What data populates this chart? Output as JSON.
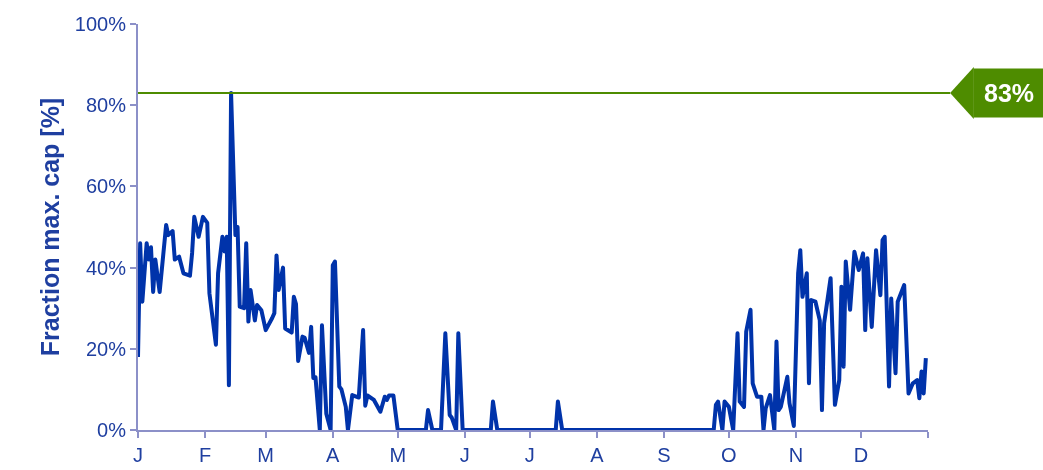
{
  "chart_data": {
    "type": "line",
    "ylabel": "Fraction max. cap [%]",
    "color": "#0033aa",
    "categories": [
      "J",
      null,
      null,
      null,
      null,
      null,
      null,
      null,
      null,
      null,
      null,
      null,
      null,
      null,
      null,
      null,
      null,
      null,
      null,
      null,
      null,
      null,
      null,
      null,
      null,
      null,
      null,
      null,
      null,
      null,
      null,
      "F",
      null,
      null,
      null,
      null,
      null,
      null,
      null,
      null,
      null,
      null,
      null,
      null,
      null,
      null,
      null,
      null,
      null,
      null,
      null,
      null,
      null,
      null,
      null,
      null,
      null,
      null,
      null,
      "M",
      null,
      null,
      null,
      null,
      null,
      null,
      null,
      null,
      null,
      null,
      null,
      null,
      null,
      null,
      null,
      null,
      null,
      null,
      null,
      null,
      null,
      null,
      null,
      null,
      null,
      null,
      null,
      null,
      null,
      null,
      "A",
      null,
      null,
      null,
      null,
      null,
      null,
      null,
      null,
      null,
      null,
      null,
      null,
      null,
      null,
      null,
      null,
      null,
      null,
      null,
      null,
      null,
      null,
      null,
      null,
      null,
      null,
      null,
      null,
      null,
      "M",
      null,
      null,
      null,
      null,
      null,
      null,
      null,
      null,
      null,
      null,
      null,
      null,
      null,
      null,
      null,
      null,
      null,
      null,
      null,
      null,
      null,
      null,
      null,
      null,
      null,
      null,
      null,
      null,
      null,
      null,
      "J",
      null,
      null,
      null,
      null,
      null,
      null,
      null,
      null,
      null,
      null,
      null,
      null,
      null,
      null,
      null,
      null,
      null,
      null,
      null,
      null,
      null,
      null,
      null,
      null,
      null,
      null,
      null,
      null,
      null,
      "J",
      null,
      null,
      null,
      null,
      null,
      null,
      null,
      null,
      null,
      null,
      null,
      null,
      null,
      null,
      null,
      null,
      null,
      null,
      null,
      null,
      null,
      null,
      null,
      null,
      null,
      null,
      null,
      null,
      null,
      null,
      "A",
      null,
      null,
      null,
      null,
      null,
      null,
      null,
      null,
      null,
      null,
      null,
      null,
      null,
      null,
      null,
      null,
      null,
      null,
      null,
      null,
      null,
      null,
      null,
      null,
      null,
      null,
      null,
      null,
      null,
      null,
      "S",
      null,
      null,
      null,
      null,
      null,
      null,
      null,
      null,
      null,
      null,
      null,
      null,
      null,
      null,
      null,
      null,
      null,
      null,
      null,
      null,
      null,
      null,
      null,
      null,
      null,
      null,
      null,
      null,
      null,
      "O",
      null,
      null,
      null,
      null,
      null,
      null,
      null,
      null,
      null,
      null,
      null,
      null,
      null,
      null,
      null,
      null,
      null,
      null,
      null,
      null,
      null,
      null,
      null,
      null,
      null,
      null,
      null,
      null,
      null,
      null,
      "N",
      null,
      null,
      null,
      null,
      null,
      null,
      null,
      null,
      null,
      null,
      null,
      null,
      null,
      null,
      null,
      null,
      null,
      null,
      null,
      null,
      null,
      null,
      null,
      null,
      null,
      null,
      null,
      null,
      null,
      "D",
      null,
      null,
      null,
      null,
      null,
      null,
      null,
      null,
      null,
      null,
      null,
      null,
      null,
      null,
      null,
      null,
      null,
      null,
      null,
      null,
      null,
      null,
      null,
      null,
      null,
      null,
      null,
      null,
      null,
      null
    ],
    "values": [
      18,
      46,
      31.6,
      null,
      46,
      42,
      45,
      34,
      42,
      null,
      34,
      null,
      null,
      50.5,
      48,
      null,
      49,
      42,
      null,
      42.7,
      null,
      38.6,
      null,
      null,
      38,
      43.6,
      52.5,
      null,
      47.6,
      null,
      52.5,
      null,
      51,
      33.7,
      null,
      null,
      21,
      38.6,
      null,
      47.6,
      44,
      47.6,
      11,
      83,
      null,
      48,
      50,
      30.4,
      null,
      30,
      46,
      26.7,
      34.5,
      null,
      27,
      30.8,
      null,
      29.5,
      null,
      24.6,
      null,
      null,
      27.6,
      28.8,
      43,
      34.5,
      null,
      40,
      25,
      null,
      null,
      24,
      32.8,
      31,
      17,
      null,
      23,
      22.7,
      null,
      19,
      25.4,
      12.8,
      13,
      null,
      0,
      25.8,
      null,
      4,
      null,
      0,
      40.6,
      41.5,
      null,
      10.7,
      10,
      null,
      5.7,
      0,
      null,
      8.6,
      null,
      null,
      8,
      null,
      24.6,
      6,
      8.5,
      null,
      null,
      7.4,
      null,
      null,
      4.5,
      null,
      8.2,
      7.4,
      8.5,
      null,
      8.5,
      null,
      0,
      0,
      0,
      0,
      0,
      0,
      0,
      0,
      0,
      0,
      0,
      0,
      0,
      0,
      4.9,
      null,
      0,
      0,
      0,
      0,
      0,
      null,
      23.8,
      null,
      3.7,
      3,
      null,
      0,
      23.8,
      null,
      0,
      0,
      0,
      0,
      0,
      0,
      0,
      0,
      0,
      0,
      0,
      0,
      0,
      0,
      7,
      null,
      0,
      0,
      0,
      0,
      0,
      0,
      0,
      0,
      0,
      0,
      0,
      0,
      0,
      0,
      0,
      0,
      0,
      0,
      0,
      0,
      0,
      0,
      0,
      0,
      0,
      0,
      0,
      0,
      7,
      null,
      0,
      0,
      0,
      0,
      0,
      0,
      0,
      0,
      0,
      0,
      0,
      0,
      0,
      0,
      0,
      0,
      0,
      0,
      0,
      0,
      0,
      0,
      0,
      0,
      0,
      0,
      0,
      0,
      0,
      0,
      0,
      0,
      0,
      0,
      0,
      0,
      0,
      0,
      0,
      0,
      0,
      0,
      0,
      0,
      0,
      0,
      0,
      0,
      0,
      0,
      0,
      0,
      0,
      0,
      0,
      0,
      0,
      0,
      0,
      0,
      0,
      0,
      0,
      0,
      0,
      0,
      0,
      0,
      0,
      0,
      0,
      6.2,
      7,
      null,
      0,
      7,
      null,
      5.7,
      null,
      0,
      null,
      23.8,
      7,
      null,
      5.7,
      24.2,
      null,
      29.6,
      11.5,
      null,
      8.2,
      null,
      8.2,
      0,
      5.3,
      null,
      8.6,
      null,
      0,
      21.8,
      4.9,
      5.7,
      null,
      null,
      13.1,
      6.6,
      null,
      1,
      null,
      38.6,
      44.3,
      32.8,
      null,
      38.6,
      11.5,
      32,
      null,
      31.6,
      null,
      27,
      4.9,
      26.3,
      null,
      null,
      37.4,
      null,
      6.2,
      null,
      12.3,
      35.3,
      15.6,
      41.5,
      null,
      29.6,
      null,
      43.9,
      null,
      39.4,
      null,
      43.5,
      24.6,
      42.3,
      null,
      25.4,
      null,
      44.3,
      null,
      33.2,
      46.8,
      47.6,
      null,
      10.7,
      32.4,
      null,
      14,
      31.6,
      null,
      null,
      35.7,
      null,
      9,
      null,
      11.5,
      null,
      12.3,
      7.8,
      14.4,
      9,
      17.7
    ],
    "ylim": [
      0,
      100
    ],
    "yticks": [
      {
        "value": 0,
        "label": "0%"
      },
      {
        "value": 20,
        "label": "20%"
      },
      {
        "value": 40,
        "label": "40%"
      },
      {
        "value": 60,
        "label": "60%"
      },
      {
        "value": 80,
        "label": "80%"
      },
      {
        "value": 100,
        "label": "100%"
      }
    ],
    "ref_lines": [
      {
        "axis": "y",
        "value": 83,
        "label": "83%",
        "color": "#4e8c00"
      }
    ]
  }
}
